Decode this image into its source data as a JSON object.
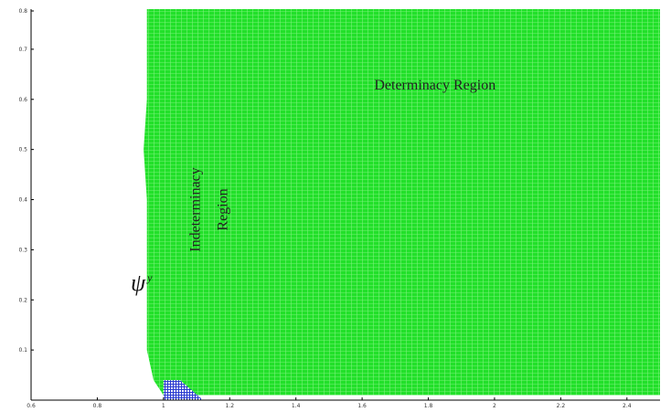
{
  "chart_data": {
    "type": "scatter",
    "title": "",
    "xlabel": "",
    "ylabel_symbol": "ψ",
    "ylabel_subscript": "y",
    "xlim": [
      0.6,
      2.5
    ],
    "ylim": [
      0,
      0.78
    ],
    "x_ticks": [
      {
        "value": 0.6,
        "label": "0.6"
      },
      {
        "value": 0.8,
        "label": "0.8"
      },
      {
        "value": 1.0,
        "label": "1"
      },
      {
        "value": 1.2,
        "label": "1.2"
      },
      {
        "value": 1.4,
        "label": "1.4"
      },
      {
        "value": 1.6,
        "label": "1.6"
      },
      {
        "value": 1.8,
        "label": "1.8"
      },
      {
        "value": 2.0,
        "label": "2"
      },
      {
        "value": 2.2,
        "label": "2.2"
      },
      {
        "value": 2.4,
        "label": "2.4"
      }
    ],
    "y_ticks": [
      {
        "value": 0.1,
        "label": "0.1"
      },
      {
        "value": 0.2,
        "label": "0.2"
      },
      {
        "value": 0.3,
        "label": "0.3"
      },
      {
        "value": 0.4,
        "label": "0.4"
      },
      {
        "value": 0.5,
        "label": "0.5"
      },
      {
        "value": 0.6,
        "label": "0.6"
      },
      {
        "value": 0.7,
        "label": "0.7"
      },
      {
        "value": 0.8,
        "label": "0.8"
      }
    ],
    "regions": [
      {
        "label": "Determinacy Region",
        "color": "#22dd22",
        "boundary": [
          [
            0.95,
            0.78
          ],
          [
            0.95,
            0.6
          ],
          [
            0.94,
            0.5
          ],
          [
            0.95,
            0.4
          ],
          [
            0.95,
            0.3
          ],
          [
            0.95,
            0.2
          ],
          [
            0.95,
            0.1
          ],
          [
            0.97,
            0.04
          ],
          [
            1.0,
            0.01
          ],
          [
            2.5,
            0.01
          ],
          [
            2.5,
            0.78
          ]
        ]
      },
      {
        "label": "",
        "color": "#2233cc",
        "boundary": [
          [
            1.0,
            0.0
          ],
          [
            1.0,
            0.04
          ],
          [
            1.05,
            0.04
          ],
          [
            1.12,
            0.0
          ]
        ]
      }
    ],
    "annotations": [
      {
        "text": "Determinacy Region",
        "x": 1.82,
        "y": 0.62
      },
      {
        "text_lines": [
          "Indeterminacy",
          "Region"
        ],
        "x": 1.11,
        "y": 0.38,
        "rotation": -90
      }
    ],
    "grid": false,
    "legend": "none"
  }
}
